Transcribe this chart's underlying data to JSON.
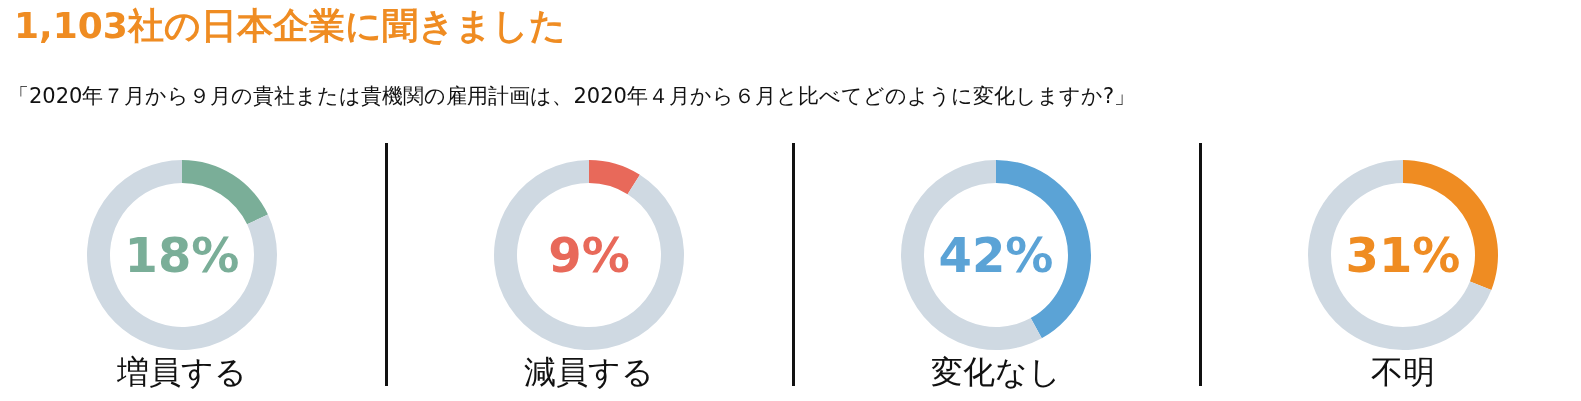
{
  "chart_data": [
    {
      "type": "donut",
      "title": "1,103社の日本企業に聞きました",
      "subtitle": "「2020年７月から９月の貴社または貴機関の雇用計画は、2020年４月から６月と比べてどのように変化しますか?」",
      "xlabel": "増員する",
      "categories": [
        null,
        null
      ],
      "values": [
        18,
        82
      ],
      "colors": [
        "#7aae98",
        "#cfd9e2"
      ],
      "annotations": [
        "18%"
      ]
    },
    {
      "type": "donut",
      "xlabel": "減員する",
      "categories": [
        null,
        null
      ],
      "values": [
        9,
        91
      ],
      "colors": [
        "#e8695a",
        "#cfd9e2"
      ],
      "annotations": [
        "9%"
      ]
    },
    {
      "type": "donut",
      "xlabel": "変化なし",
      "categories": [
        null,
        null
      ],
      "values": [
        42,
        58
      ],
      "colors": [
        "#5ba3d6",
        "#cfd9e2"
      ],
      "annotations": [
        "42%"
      ]
    },
    {
      "type": "donut",
      "xlabel": "不明",
      "categories": [
        null,
        null
      ],
      "values": [
        31,
        69
      ],
      "colors": [
        "#ef8c22",
        "#cfd9e2"
      ],
      "annotations": [
        "31%"
      ]
    }
  ]
}
